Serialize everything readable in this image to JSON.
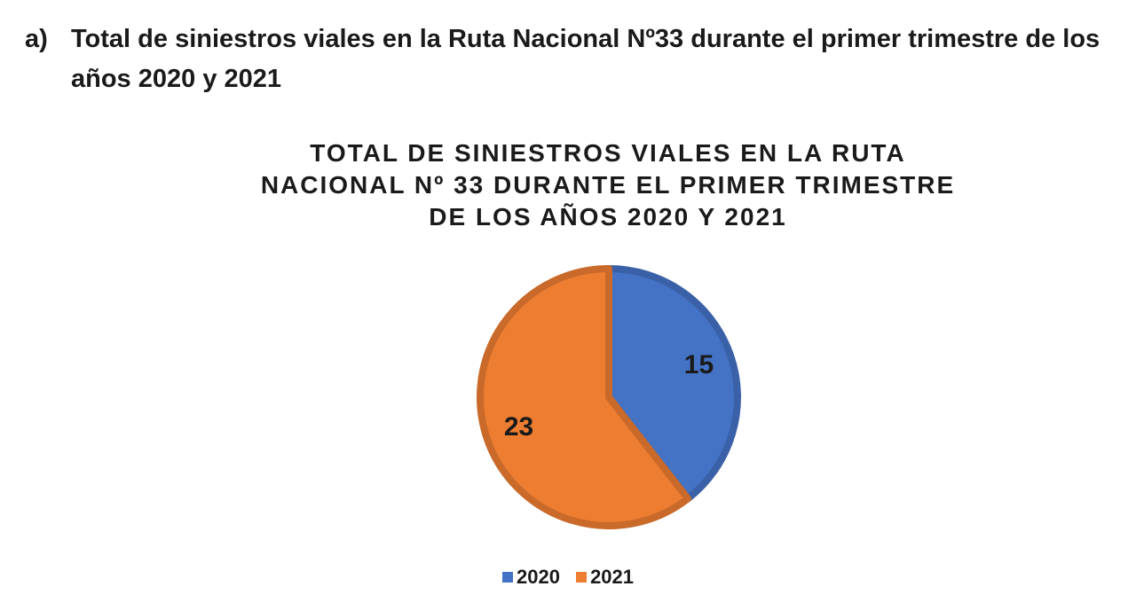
{
  "heading": {
    "marker": "a)",
    "text": "Total de siniestros viales en la Ruta Nacional Nº33 durante el primer trimestre de los años 2020 y 2021"
  },
  "chart_data": {
    "type": "pie",
    "title": "TOTAL DE SINIESTROS VIALES EN LA RUTA NACIONAL Nº 33 DURANTE EL PRIMER TRIMESTRE DE LOS AÑOS 2020 Y 2021",
    "categories": [
      "2020",
      "2021"
    ],
    "values": [
      15,
      23
    ],
    "colors": [
      "#4472C4",
      "#ED7D31"
    ],
    "data_labels": [
      "15",
      "23"
    ],
    "legend_placement": "bottom"
  }
}
